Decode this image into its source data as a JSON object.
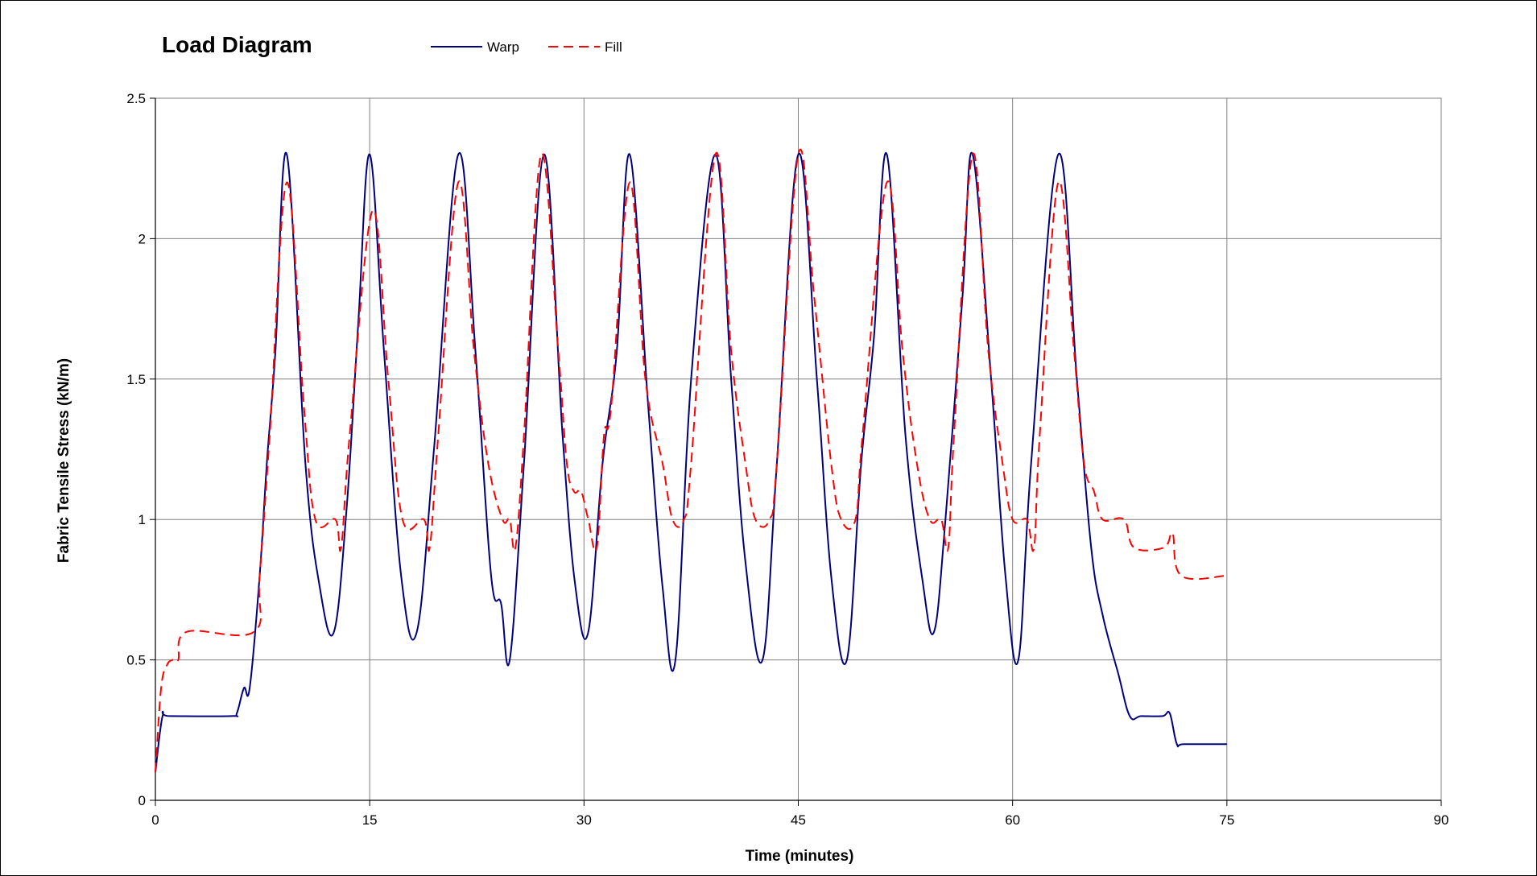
{
  "chart_data": {
    "type": "line",
    "title": "Load Diagram",
    "xlabel": "Time (minutes)",
    "ylabel": "Fabric Tensile Stress (kN/m)",
    "xlim": [
      0,
      90
    ],
    "ylim": [
      0,
      2.5
    ],
    "x_ticks": [
      0,
      15,
      30,
      45,
      60,
      75,
      90
    ],
    "y_ticks": [
      0,
      0.5,
      1,
      1.5,
      2,
      2.5
    ],
    "x_tick_labels": [
      "0",
      "15",
      "30",
      "45",
      "60",
      "75",
      "90"
    ],
    "y_tick_labels": [
      "0",
      "0.5",
      "1",
      "1.5",
      "2",
      "2.5"
    ],
    "grid": true,
    "legend_position": "top",
    "series": [
      {
        "name": "Warp",
        "color": "#00007f",
        "style": "solid",
        "points": [
          [
            0,
            0.1
          ],
          [
            0.5,
            0.3
          ],
          [
            1,
            0.3
          ],
          [
            5.3,
            0.3
          ],
          [
            5.7,
            0.31
          ],
          [
            6.2,
            0.4
          ],
          [
            6.6,
            0.4
          ],
          [
            7.3,
            0.8
          ],
          [
            7.8,
            1.2
          ],
          [
            8.4,
            1.6
          ],
          [
            9.2,
            2.3
          ],
          [
            10.5,
            1.2
          ],
          [
            11.5,
            0.76
          ],
          [
            12.5,
            0.6
          ],
          [
            13.4,
            1.05
          ],
          [
            14.2,
            1.7
          ],
          [
            15,
            2.3
          ],
          [
            16,
            1.6
          ],
          [
            17.2,
            0.8
          ],
          [
            18.3,
            0.6
          ],
          [
            19.5,
            1.25
          ],
          [
            21.2,
            2.3
          ],
          [
            22.4,
            1.6
          ],
          [
            23.5,
            0.8
          ],
          [
            24.2,
            0.7
          ],
          [
            24.8,
            0.5
          ],
          [
            25.8,
            1.2
          ],
          [
            27.2,
            2.3
          ],
          [
            28.5,
            1.3
          ],
          [
            29.4,
            0.76
          ],
          [
            30.3,
            0.6
          ],
          [
            31.3,
            1.2
          ],
          [
            32.3,
            1.6
          ],
          [
            33.2,
            2.3
          ],
          [
            34.5,
            1.4
          ],
          [
            35.5,
            0.76
          ],
          [
            36.4,
            0.5
          ],
          [
            37.5,
            1.5
          ],
          [
            39.2,
            2.3
          ],
          [
            40.3,
            1.5
          ],
          [
            41.3,
            0.85
          ],
          [
            42.5,
            0.5
          ],
          [
            43.5,
            1.2
          ],
          [
            45,
            2.3
          ],
          [
            46.3,
            1.5
          ],
          [
            47.3,
            0.8
          ],
          [
            48.4,
            0.5
          ],
          [
            49.4,
            1.2
          ],
          [
            50.3,
            1.65
          ],
          [
            51.2,
            2.3
          ],
          [
            52.5,
            1.3
          ],
          [
            53.7,
            0.78
          ],
          [
            54.5,
            0.6
          ],
          [
            55.3,
            1.0
          ],
          [
            56.5,
            1.8
          ],
          [
            57.2,
            2.3
          ],
          [
            58.5,
            1.5
          ],
          [
            59.5,
            0.8
          ],
          [
            60.4,
            0.5
          ],
          [
            61.3,
            1.2
          ],
          [
            63.2,
            2.3
          ],
          [
            64.5,
            1.5
          ],
          [
            65.5,
            0.9
          ],
          [
            66.3,
            0.66
          ],
          [
            67.4,
            0.45
          ],
          [
            68.2,
            0.3
          ],
          [
            69,
            0.3
          ],
          [
            70.5,
            0.3
          ],
          [
            71,
            0.31
          ],
          [
            71.5,
            0.2
          ],
          [
            72,
            0.2
          ],
          [
            75,
            0.2
          ]
        ]
      },
      {
        "name": "Fill",
        "color": "#ff0000",
        "style": "dashed",
        "points": [
          [
            0,
            0.1
          ],
          [
            0.4,
            0.4
          ],
          [
            0.8,
            0.48
          ],
          [
            1.2,
            0.5
          ],
          [
            1.6,
            0.5
          ],
          [
            2.2,
            0.6
          ],
          [
            6.9,
            0.6
          ],
          [
            7.3,
            0.8
          ],
          [
            8,
            1.3
          ],
          [
            9.2,
            2.2
          ],
          [
            10.4,
            1.4
          ],
          [
            11.2,
            1.0
          ],
          [
            12.6,
            1.0
          ],
          [
            13,
            0.9
          ],
          [
            13.6,
            1.3
          ],
          [
            15.2,
            2.1
          ],
          [
            16.3,
            1.5
          ],
          [
            17.3,
            1.0
          ],
          [
            18.8,
            1.0
          ],
          [
            19.2,
            0.9
          ],
          [
            19.8,
            1.3
          ],
          [
            21.2,
            2.2
          ],
          [
            22.3,
            1.6
          ],
          [
            23.3,
            1.2
          ],
          [
            24.3,
            1.0
          ],
          [
            24.8,
            1.0
          ],
          [
            25.2,
            0.9
          ],
          [
            25.8,
            1.3
          ],
          [
            27,
            2.3
          ],
          [
            28.2,
            1.6
          ],
          [
            28.8,
            1.2
          ],
          [
            29.3,
            1.1
          ],
          [
            29.8,
            1.1
          ],
          [
            30.3,
            1.0
          ],
          [
            30.9,
            0.9
          ],
          [
            31.4,
            1.3
          ],
          [
            31.9,
            1.4
          ],
          [
            33.2,
            2.2
          ],
          [
            34.3,
            1.5
          ],
          [
            35.5,
            1.2
          ],
          [
            36.2,
            1.0
          ],
          [
            37,
            1.0
          ],
          [
            37.5,
            1.2
          ],
          [
            39.2,
            2.3
          ],
          [
            40.3,
            1.6
          ],
          [
            41.3,
            1.2
          ],
          [
            42,
            1.0
          ],
          [
            43,
            1.0
          ],
          [
            43.5,
            1.2
          ],
          [
            45,
            2.3
          ],
          [
            46.1,
            1.8
          ],
          [
            47.3,
            1.2
          ],
          [
            48,
            1.0
          ],
          [
            49,
            1.0
          ],
          [
            49.5,
            1.3
          ],
          [
            51.2,
            2.2
          ],
          [
            52.3,
            1.6
          ],
          [
            53.3,
            1.2
          ],
          [
            54.2,
            1.0
          ],
          [
            55,
            1.0
          ],
          [
            55.5,
            0.9
          ],
          [
            55.9,
            1.3
          ],
          [
            57.2,
            2.3
          ],
          [
            58.3,
            1.6
          ],
          [
            59.3,
            1.2
          ],
          [
            60,
            1.0
          ],
          [
            61,
            1.0
          ],
          [
            61.5,
            0.9
          ],
          [
            61.9,
            1.3
          ],
          [
            63.2,
            2.2
          ],
          [
            64.3,
            1.6
          ],
          [
            65,
            1.2
          ],
          [
            65.7,
            1.1
          ],
          [
            66.3,
            1.0
          ],
          [
            67.8,
            1.0
          ],
          [
            68.5,
            0.9
          ],
          [
            70.6,
            0.9
          ],
          [
            71.2,
            0.95
          ],
          [
            71.8,
            0.8
          ],
          [
            75,
            0.8
          ]
        ]
      }
    ]
  }
}
